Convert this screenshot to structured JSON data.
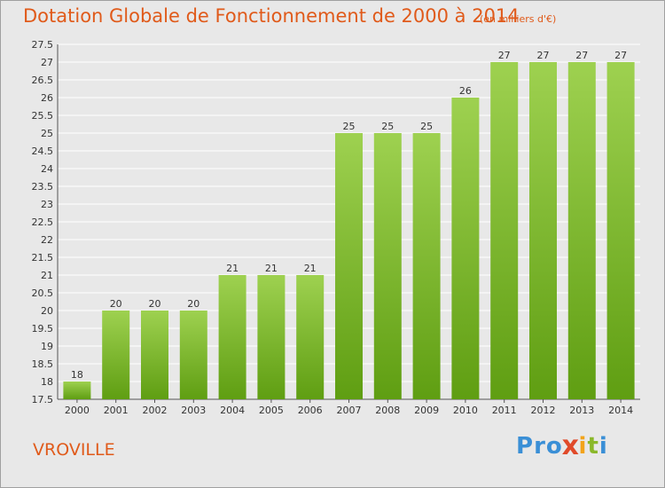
{
  "title": "Dotation Globale de Fonctionnement de 2000 à 2014",
  "unit_note": "(en milliers d'€)",
  "place": "VROVILLE",
  "logo": {
    "letters": [
      "P",
      "r",
      "o",
      "x",
      "i",
      "t",
      "i"
    ],
    "colors": [
      "#3a8fd6",
      "#3a8fd6",
      "#3a8fd6",
      "#e04a2a",
      "#f2a31a",
      "#8ab82a",
      "#3a8fd6"
    ]
  },
  "colors": {
    "title": "#e05a1a",
    "bar_top": "#9ed150",
    "bar_bottom": "#5f9e12"
  },
  "chart_data": {
    "type": "bar",
    "categories": [
      "2000",
      "2001",
      "2002",
      "2003",
      "2004",
      "2005",
      "2006",
      "2007",
      "2008",
      "2009",
      "2010",
      "2011",
      "2012",
      "2013",
      "2014"
    ],
    "values": [
      18,
      20,
      20,
      20,
      21,
      21,
      21,
      25,
      25,
      25,
      26,
      27,
      27,
      27,
      27
    ],
    "ylim": [
      17.5,
      27.5
    ],
    "yticks": [
      "17.5",
      "18",
      "18.5",
      "19",
      "19.5",
      "20",
      "20.5",
      "21",
      "21.5",
      "22",
      "22.5",
      "23",
      "23.5",
      "24",
      "24.5",
      "25",
      "25.5",
      "26",
      "26.5",
      "27",
      "27.5"
    ],
    "grid": true
  }
}
